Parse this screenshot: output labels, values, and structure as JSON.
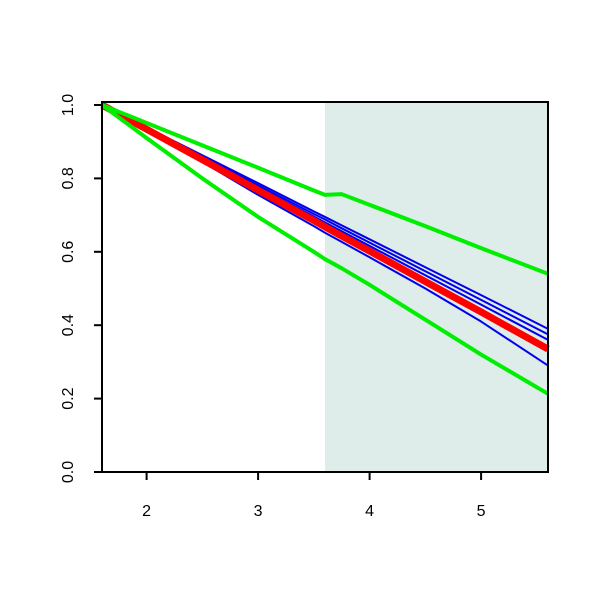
{
  "chart_data": {
    "type": "line",
    "x": [
      1.6,
      2,
      2.5,
      3,
      3.5,
      3.6,
      3.75,
      4,
      4.5,
      5,
      5.6
    ],
    "series": [
      {
        "color": "#0000ee",
        "width": 2,
        "values": [
          1.0,
          0.939,
          0.863,
          0.787,
          0.71,
          0.695,
          0.672,
          0.634,
          0.558,
          0.482,
          0.39
        ]
      },
      {
        "color": "#0000ee",
        "width": 2,
        "values": [
          1.0,
          0.938,
          0.86,
          0.781,
          0.703,
          0.688,
          0.664,
          0.625,
          0.547,
          0.469,
          0.375
        ]
      },
      {
        "color": "#0000ee",
        "width": 2,
        "values": [
          1.0,
          0.936,
          0.856,
          0.776,
          0.696,
          0.68,
          0.656,
          0.616,
          0.536,
          0.456,
          0.36
        ]
      },
      {
        "color": "#0000ee",
        "width": 2,
        "values": [
          1.0,
          0.93,
          0.845,
          0.755,
          0.67,
          0.652,
          0.627,
          0.585,
          0.5,
          0.41,
          0.29
        ]
      },
      {
        "color": "#ff0000",
        "width": 7,
        "values": [
          1.0,
          0.934,
          0.851,
          0.768,
          0.685,
          0.668,
          0.643,
          0.602,
          0.519,
          0.436,
          0.335
        ]
      },
      {
        "color": "#00ee00",
        "width": 4,
        "values": [
          1.0,
          0.951,
          0.89,
          0.829,
          0.767,
          0.755,
          0.757,
          0.728,
          0.67,
          0.61,
          0.54
        ]
      },
      {
        "color": "#00ee00",
        "width": 4,
        "values": [
          1.0,
          0.91,
          0.8,
          0.695,
          0.6,
          0.58,
          0.555,
          0.51,
          0.415,
          0.32,
          0.213
        ]
      }
    ],
    "shade": {
      "xlim": [
        3.6,
        5.6
      ],
      "color": "#deecea"
    },
    "xlim": [
      1.6,
      5.6
    ],
    "xticks": [
      2,
      3,
      4,
      5
    ],
    "ylim": [
      0,
      1
    ],
    "yticks": [
      {
        "value": 0,
        "label": "0.0"
      },
      0.2,
      0.4,
      0.6,
      0.8,
      {
        "value": 1,
        "label": "1.0"
      }
    ]
  }
}
